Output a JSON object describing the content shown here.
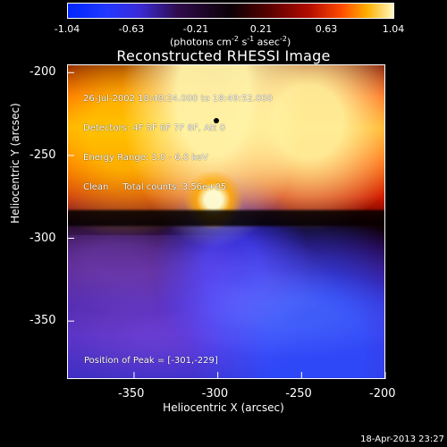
{
  "chart_data": {
    "type": "heatmap",
    "title": "Reconstructed RHESSI Image",
    "xlabel": "Heliocentric X (arcsec)",
    "ylabel": "Heliocentric Y (arcsec)",
    "x_ticks": [
      -350,
      -300,
      -250,
      -200
    ],
    "y_ticks": [
      -200,
      -250,
      -300,
      -350
    ],
    "xlim": [
      -390,
      -200
    ],
    "ylim": [
      -385,
      -195
    ],
    "grid": false,
    "colorbar": {
      "ticks": [
        -1.04,
        -0.63,
        -0.21,
        0.21,
        0.63,
        1.04
      ],
      "range": [
        -1.04,
        1.04
      ],
      "units_label": "(photons cm-2 s-1 asec-2)"
    },
    "annotations": {
      "lines": [
        "26-Jul-2002 18:48:24.000 to 18:49:52.000",
        "Detectors: 4F 5F 6F 7F 8F, Att 0",
        "Energy Range: 3.0 - 6.0 keV",
        "Clean     Total counts: 3.56e+05"
      ],
      "peak_label": "Position of Peak = [-301,-229]"
    },
    "peak_position": {
      "x": -301,
      "y": -229
    },
    "timestamp": "18-Apr-2013 23:27"
  }
}
